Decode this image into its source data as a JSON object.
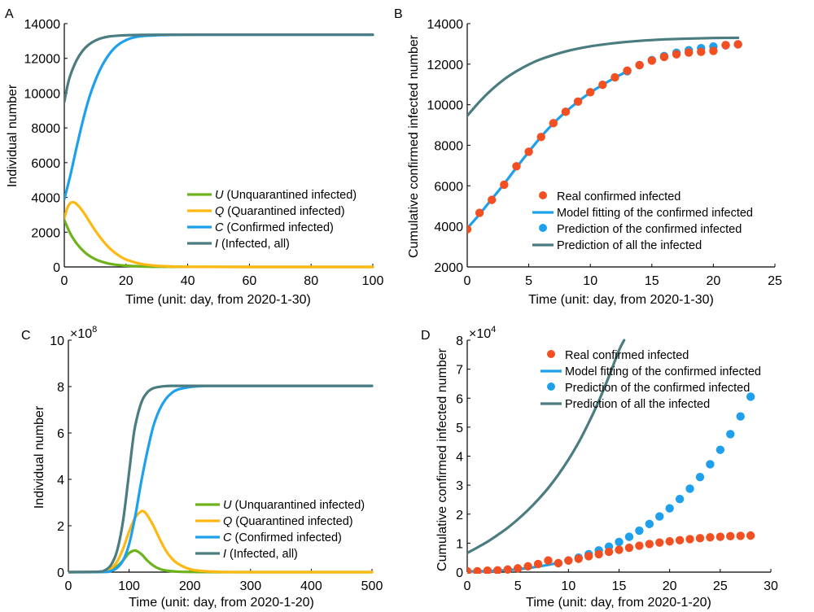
{
  "colors": {
    "U": "#6db31c",
    "Q": "#fdb813",
    "C": "#1ea0ec",
    "I": "#4a7c80",
    "real": "#f25022",
    "pred": "#1ea0ec",
    "axis": "#000000"
  },
  "chart_data": [
    {
      "id": "A",
      "panel_label": "A",
      "type": "line",
      "xlabel": "Time (unit: day, from 2020-1-30)",
      "ylabel": "Individual number",
      "xlim": [
        0,
        100
      ],
      "ylim": [
        0,
        14000
      ],
      "xticks": [
        0,
        20,
        40,
        60,
        80,
        100
      ],
      "yticks": [
        0,
        2000,
        4000,
        6000,
        8000,
        10000,
        12000,
        14000
      ],
      "ytick_labels": [
        "0",
        "2000",
        "4000",
        "6000",
        "8000",
        "10000",
        "12000",
        "14000"
      ],
      "exponent": "",
      "legend_position": "lower-right",
      "legend": [
        {
          "key": "U",
          "symbol": "U",
          "text": " (Unquarantined infected)",
          "kind": "line"
        },
        {
          "key": "Q",
          "symbol": "Q",
          "text": " (Quarantined infected)",
          "kind": "line"
        },
        {
          "key": "C",
          "symbol": "C",
          "text": " (Confirmed infected)",
          "kind": "line"
        },
        {
          "key": "I",
          "symbol": "I",
          "text": " (Infected, all)",
          "kind": "line"
        }
      ],
      "series": [
        {
          "name": "U",
          "color_key": "U",
          "kind": "line",
          "x": [
            0,
            2,
            4,
            6,
            8,
            10,
            12,
            14,
            16,
            18,
            20,
            25,
            30,
            40,
            60,
            100
          ],
          "y": [
            2700,
            1900,
            1350,
            950,
            650,
            450,
            310,
            210,
            145,
            100,
            70,
            30,
            12,
            3,
            0,
            0
          ]
        },
        {
          "name": "Q",
          "color_key": "Q",
          "kind": "line",
          "x": [
            0,
            1,
            2,
            3,
            4,
            6,
            8,
            10,
            12,
            14,
            16,
            18,
            20,
            25,
            30,
            35,
            40,
            60,
            100
          ],
          "y": [
            2800,
            3400,
            3680,
            3720,
            3620,
            3200,
            2650,
            2100,
            1620,
            1200,
            870,
            620,
            430,
            170,
            65,
            25,
            10,
            0,
            0
          ]
        },
        {
          "name": "C",
          "color_key": "C",
          "kind": "line",
          "x": [
            0,
            2,
            4,
            6,
            8,
            10,
            12,
            14,
            16,
            18,
            20,
            22,
            25,
            30,
            35,
            40,
            60,
            100
          ],
          "y": [
            3900,
            5300,
            6900,
            8400,
            9700,
            10700,
            11500,
            12100,
            12550,
            12850,
            13050,
            13180,
            13280,
            13330,
            13350,
            13360,
            13360,
            13360
          ]
        },
        {
          "name": "I",
          "color_key": "I",
          "kind": "line",
          "x": [
            0,
            1,
            2,
            4,
            6,
            8,
            10,
            12,
            15,
            20,
            25,
            30,
            40,
            60,
            100
          ],
          "y": [
            9500,
            10400,
            11050,
            11900,
            12450,
            12800,
            13020,
            13160,
            13270,
            13330,
            13350,
            13360,
            13360,
            13360,
            13360
          ]
        }
      ]
    },
    {
      "id": "B",
      "panel_label": "B",
      "type": "scatter",
      "xlabel": "Time (unit: day, from 2020-1-30)",
      "ylabel": "Cumulative confirmed infected number",
      "xlim": [
        0,
        25
      ],
      "ylim": [
        2000,
        14000
      ],
      "xticks": [
        0,
        5,
        10,
        15,
        20,
        25
      ],
      "yticks": [
        2000,
        4000,
        6000,
        8000,
        10000,
        12000,
        14000
      ],
      "ytick_labels": [
        "2000",
        "4000",
        "6000",
        "8000",
        "10000",
        "12000",
        "14000"
      ],
      "exponent": "",
      "legend_position": "lower-right",
      "legend": [
        {
          "key": "real",
          "symbol": "",
          "text": "Real confirmed infected",
          "kind": "dot"
        },
        {
          "key": "C",
          "symbol": "",
          "text": "Model fitting of the confirmed infected",
          "kind": "line"
        },
        {
          "key": "pred",
          "symbol": "",
          "text": "Prediction of the confirmed infected",
          "kind": "dot"
        },
        {
          "key": "I",
          "symbol": "",
          "text": "Prediction of all the infected",
          "kind": "line"
        }
      ],
      "series": [
        {
          "name": "Prediction of all the infected",
          "color_key": "I",
          "kind": "line",
          "x": [
            0,
            1,
            2,
            3,
            4,
            5,
            6,
            8,
            10,
            12,
            14,
            16,
            18,
            20,
            22
          ],
          "y": [
            9450,
            10150,
            10750,
            11250,
            11650,
            11980,
            12250,
            12630,
            12880,
            13040,
            13150,
            13220,
            13260,
            13290,
            13300
          ]
        },
        {
          "name": "Model fitting of the confirmed infected",
          "color_key": "C",
          "kind": "line",
          "x": [
            0,
            1,
            2,
            3,
            4,
            5,
            6,
            7,
            8,
            9,
            10,
            11,
            12,
            13
          ],
          "y": [
            3900,
            4600,
            5350,
            6100,
            6900,
            7680,
            8420,
            9080,
            9650,
            10150,
            10600,
            10980,
            11330,
            11650
          ]
        },
        {
          "name": "Prediction of the confirmed infected",
          "color_key": "pred",
          "kind": "dot",
          "x": [
            13,
            14,
            15,
            16,
            17,
            18,
            19,
            20,
            21,
            22
          ],
          "y": [
            11650,
            11950,
            12200,
            12400,
            12560,
            12690,
            12790,
            12870,
            12930,
            12980
          ]
        },
        {
          "name": "Real confirmed infected",
          "color_key": "real",
          "kind": "dot",
          "x": [
            0,
            1,
            2,
            3,
            4,
            5,
            6,
            7,
            8,
            9,
            10,
            11,
            12,
            13,
            14,
            15,
            16,
            17,
            18,
            19,
            20,
            21,
            22
          ],
          "y": [
            3859,
            4665,
            5306,
            6055,
            6966,
            7683,
            8409,
            9089,
            9652,
            10156,
            10615,
            10981,
            11349,
            11681,
            11957,
            12177,
            12356,
            12485,
            12573,
            12607,
            12654,
            12940,
            12977
          ]
        }
      ]
    },
    {
      "id": "C",
      "panel_label": "C",
      "type": "line",
      "xlabel": "Time (unit: day, from 2020-1-20)",
      "ylabel": "Individual number",
      "xlim": [
        0,
        500
      ],
      "ylim": [
        0,
        10
      ],
      "xticks": [
        0,
        100,
        200,
        300,
        400,
        500
      ],
      "yticks": [
        0,
        2,
        4,
        6,
        8,
        10
      ],
      "ytick_labels": [
        "0",
        "2",
        "4",
        "6",
        "8",
        "10"
      ],
      "exponent": "8",
      "exponent_base": "×10",
      "legend_position": "lower-right",
      "legend": [
        {
          "key": "U",
          "symbol": "U",
          "text": " (Unquarantined infected)",
          "kind": "line"
        },
        {
          "key": "Q",
          "symbol": "Q",
          "text": " (Quarantined infected)",
          "kind": "line"
        },
        {
          "key": "C",
          "symbol": "C",
          "text": " (Confirmed infected)",
          "kind": "line"
        },
        {
          "key": "I",
          "symbol": "I",
          "text": " (Infected, all)",
          "kind": "line"
        }
      ],
      "series": [
        {
          "name": "U",
          "color_key": "U",
          "kind": "line",
          "x": [
            0,
            50,
            60,
            70,
            80,
            90,
            100,
            110,
            120,
            130,
            140,
            150,
            160,
            180,
            200,
            250,
            500
          ],
          "y": [
            0,
            0.01,
            0.03,
            0.1,
            0.25,
            0.5,
            0.82,
            0.93,
            0.78,
            0.5,
            0.28,
            0.14,
            0.07,
            0.02,
            0.01,
            0,
            0
          ]
        },
        {
          "name": "Q",
          "color_key": "Q",
          "kind": "line",
          "x": [
            0,
            50,
            60,
            70,
            80,
            90,
            100,
            110,
            120,
            125,
            130,
            140,
            150,
            160,
            170,
            180,
            200,
            220,
            250,
            300,
            500
          ],
          "y": [
            0,
            0.01,
            0.04,
            0.15,
            0.45,
            1.0,
            1.75,
            2.35,
            2.62,
            2.6,
            2.45,
            2.0,
            1.45,
            0.95,
            0.6,
            0.37,
            0.13,
            0.05,
            0.01,
            0,
            0
          ]
        },
        {
          "name": "C",
          "color_key": "C",
          "kind": "line",
          "x": [
            0,
            60,
            70,
            80,
            90,
            100,
            110,
            120,
            130,
            140,
            150,
            160,
            170,
            180,
            200,
            220,
            250,
            500
          ],
          "y": [
            0,
            0.01,
            0.05,
            0.18,
            0.5,
            1.2,
            2.4,
            3.9,
            5.2,
            6.3,
            7.0,
            7.45,
            7.72,
            7.87,
            7.98,
            8.02,
            8.03,
            8.03
          ]
        },
        {
          "name": "I",
          "color_key": "I",
          "kind": "line",
          "x": [
            0,
            50,
            60,
            70,
            80,
            90,
            100,
            105,
            110,
            120,
            130,
            140,
            150,
            160,
            170,
            180,
            200,
            500
          ],
          "y": [
            0,
            0.02,
            0.08,
            0.3,
            0.9,
            2.2,
            4.3,
            5.4,
            6.3,
            7.3,
            7.75,
            7.93,
            7.99,
            8.02,
            8.03,
            8.03,
            8.03,
            8.03
          ]
        }
      ]
    },
    {
      "id": "D",
      "panel_label": "D",
      "type": "scatter",
      "xlabel": "Time (unit: day, from 2020-1-20)",
      "ylabel": "Cumulative confirmed infected number",
      "xlim": [
        0,
        30
      ],
      "ylim": [
        0,
        8
      ],
      "xticks": [
        0,
        5,
        10,
        15,
        20,
        25,
        30
      ],
      "yticks": [
        0,
        1,
        2,
        3,
        4,
        5,
        6,
        7,
        8
      ],
      "ytick_labels": [
        "0",
        "1",
        "2",
        "3",
        "4",
        "5",
        "6",
        "7",
        "8"
      ],
      "exponent": "4",
      "exponent_base": "×10",
      "legend_position": "top",
      "legend": [
        {
          "key": "real",
          "symbol": "",
          "text": "Real confirmed infected",
          "kind": "dot"
        },
        {
          "key": "C",
          "symbol": "",
          "text": "Model fitting of the confirmed infected",
          "kind": "line"
        },
        {
          "key": "pred",
          "symbol": "",
          "text": "Prediction of the confirmed infected",
          "kind": "dot"
        },
        {
          "key": "I",
          "symbol": "",
          "text": "Prediction of all the infected",
          "kind": "line"
        }
      ],
      "series": [
        {
          "name": "Prediction of all the infected",
          "color_key": "I",
          "kind": "line",
          "x": [
            0,
            1,
            2,
            3,
            4,
            5,
            6,
            7,
            8,
            9,
            10,
            11,
            12,
            13,
            14,
            15,
            15.5
          ],
          "y": [
            0.66,
            0.85,
            1.05,
            1.28,
            1.53,
            1.82,
            2.14,
            2.5,
            2.9,
            3.36,
            3.88,
            4.47,
            5.15,
            5.9,
            6.75,
            7.65,
            8.0
          ]
        },
        {
          "name": "Model fitting of the confirmed infected",
          "color_key": "C",
          "kind": "line",
          "x": [
            0,
            1,
            2,
            3,
            4,
            5,
            6,
            7,
            8,
            9
          ],
          "y": [
            0.03,
            0.03,
            0.04,
            0.05,
            0.07,
            0.1,
            0.14,
            0.19,
            0.25,
            0.32
          ]
        },
        {
          "name": "Prediction of the confirmed infected",
          "color_key": "pred",
          "kind": "dot",
          "x": [
            10,
            11,
            12,
            13,
            14,
            15,
            16,
            17,
            18,
            19,
            20,
            21,
            22,
            23,
            24,
            25,
            26,
            27,
            28
          ],
          "y": [
            0.4,
            0.5,
            0.62,
            0.75,
            0.88,
            1.04,
            1.22,
            1.43,
            1.66,
            1.92,
            2.2,
            2.52,
            2.88,
            3.28,
            3.72,
            4.22,
            4.76,
            5.37,
            6.05
          ]
        },
        {
          "name": "Real confirmed infected",
          "color_key": "real",
          "kind": "dot",
          "x": [
            0,
            1,
            2,
            3,
            4,
            5,
            6,
            7,
            8,
            9,
            10,
            11,
            12,
            13,
            14,
            15,
            16,
            17,
            18,
            19,
            20,
            21,
            22,
            23,
            24,
            25,
            26,
            27,
            28
          ],
          "y": [
            0.03,
            0.03,
            0.05,
            0.06,
            0.09,
            0.13,
            0.2,
            0.28,
            0.4,
            0.31,
            0.4,
            0.46,
            0.55,
            0.62,
            0.7,
            0.77,
            0.84,
            0.91,
            0.97,
            1.02,
            1.06,
            1.1,
            1.14,
            1.17,
            1.2,
            1.22,
            1.24,
            1.25,
            1.26
          ]
        }
      ]
    }
  ]
}
